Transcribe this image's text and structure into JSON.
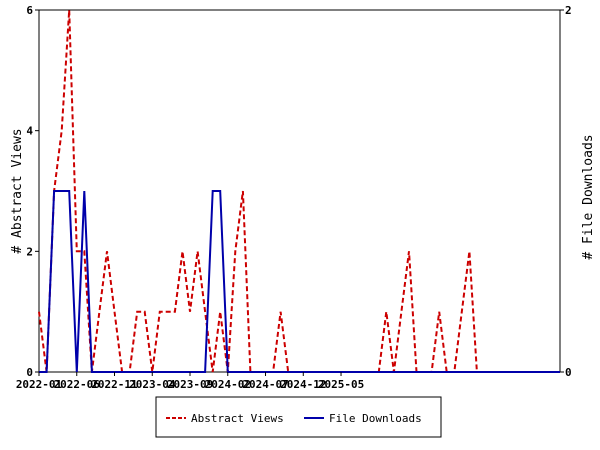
{
  "chart_data": {
    "type": "line",
    "x_tick_labels": [
      "2022-01",
      "2022-06",
      "2022-11",
      "2023-04",
      "2023-09",
      "2024-02",
      "2024-07",
      "2024-12",
      "2025-05"
    ],
    "y_left": {
      "label": "# Abstract Views",
      "ticks": [
        "0",
        "2",
        "4",
        "6"
      ],
      "ylim": [
        0,
        6
      ]
    },
    "y_right": {
      "label": "# File Downloads",
      "ticks": [
        "0",
        "2"
      ],
      "ylim": [
        0,
        2
      ]
    },
    "grid": false,
    "legend_position": "bottom-center",
    "series": [
      {
        "name": "Abstract Views",
        "axis": "left",
        "color": "#cc0000",
        "style": "dashed",
        "values": [
          1,
          0,
          3,
          4,
          6,
          2,
          2,
          0,
          1,
          2,
          1,
          0,
          0,
          1,
          1,
          0,
          1,
          1,
          1,
          2,
          1,
          2,
          1,
          0,
          1,
          0,
          2,
          3,
          0,
          0,
          0,
          0,
          1,
          0,
          0,
          0,
          0,
          0,
          0,
          0,
          0,
          0,
          0,
          0,
          0,
          0,
          1,
          0,
          1,
          2,
          0,
          0,
          0,
          1,
          0,
          0,
          1,
          2,
          0,
          0,
          0,
          0,
          0,
          0,
          0,
          0,
          0,
          0,
          0,
          0
        ]
      },
      {
        "name": "File Downloads",
        "axis": "right",
        "color": "#0000aa",
        "style": "solid",
        "values": [
          0,
          0,
          1,
          1,
          1,
          0,
          1,
          0,
          0,
          0,
          0,
          0,
          0,
          0,
          0,
          0,
          0,
          0,
          0,
          0,
          0,
          0,
          0,
          1,
          1,
          0,
          0,
          0,
          0,
          0,
          0,
          0,
          0,
          0,
          0,
          0,
          0,
          0,
          0,
          0,
          0,
          0,
          0,
          0,
          0,
          0,
          0,
          0,
          0,
          0,
          0,
          0,
          0,
          0,
          0,
          0,
          0,
          0,
          0,
          0,
          0,
          0,
          0,
          0,
          0,
          0,
          0,
          0,
          0,
          0
        ]
      }
    ]
  }
}
